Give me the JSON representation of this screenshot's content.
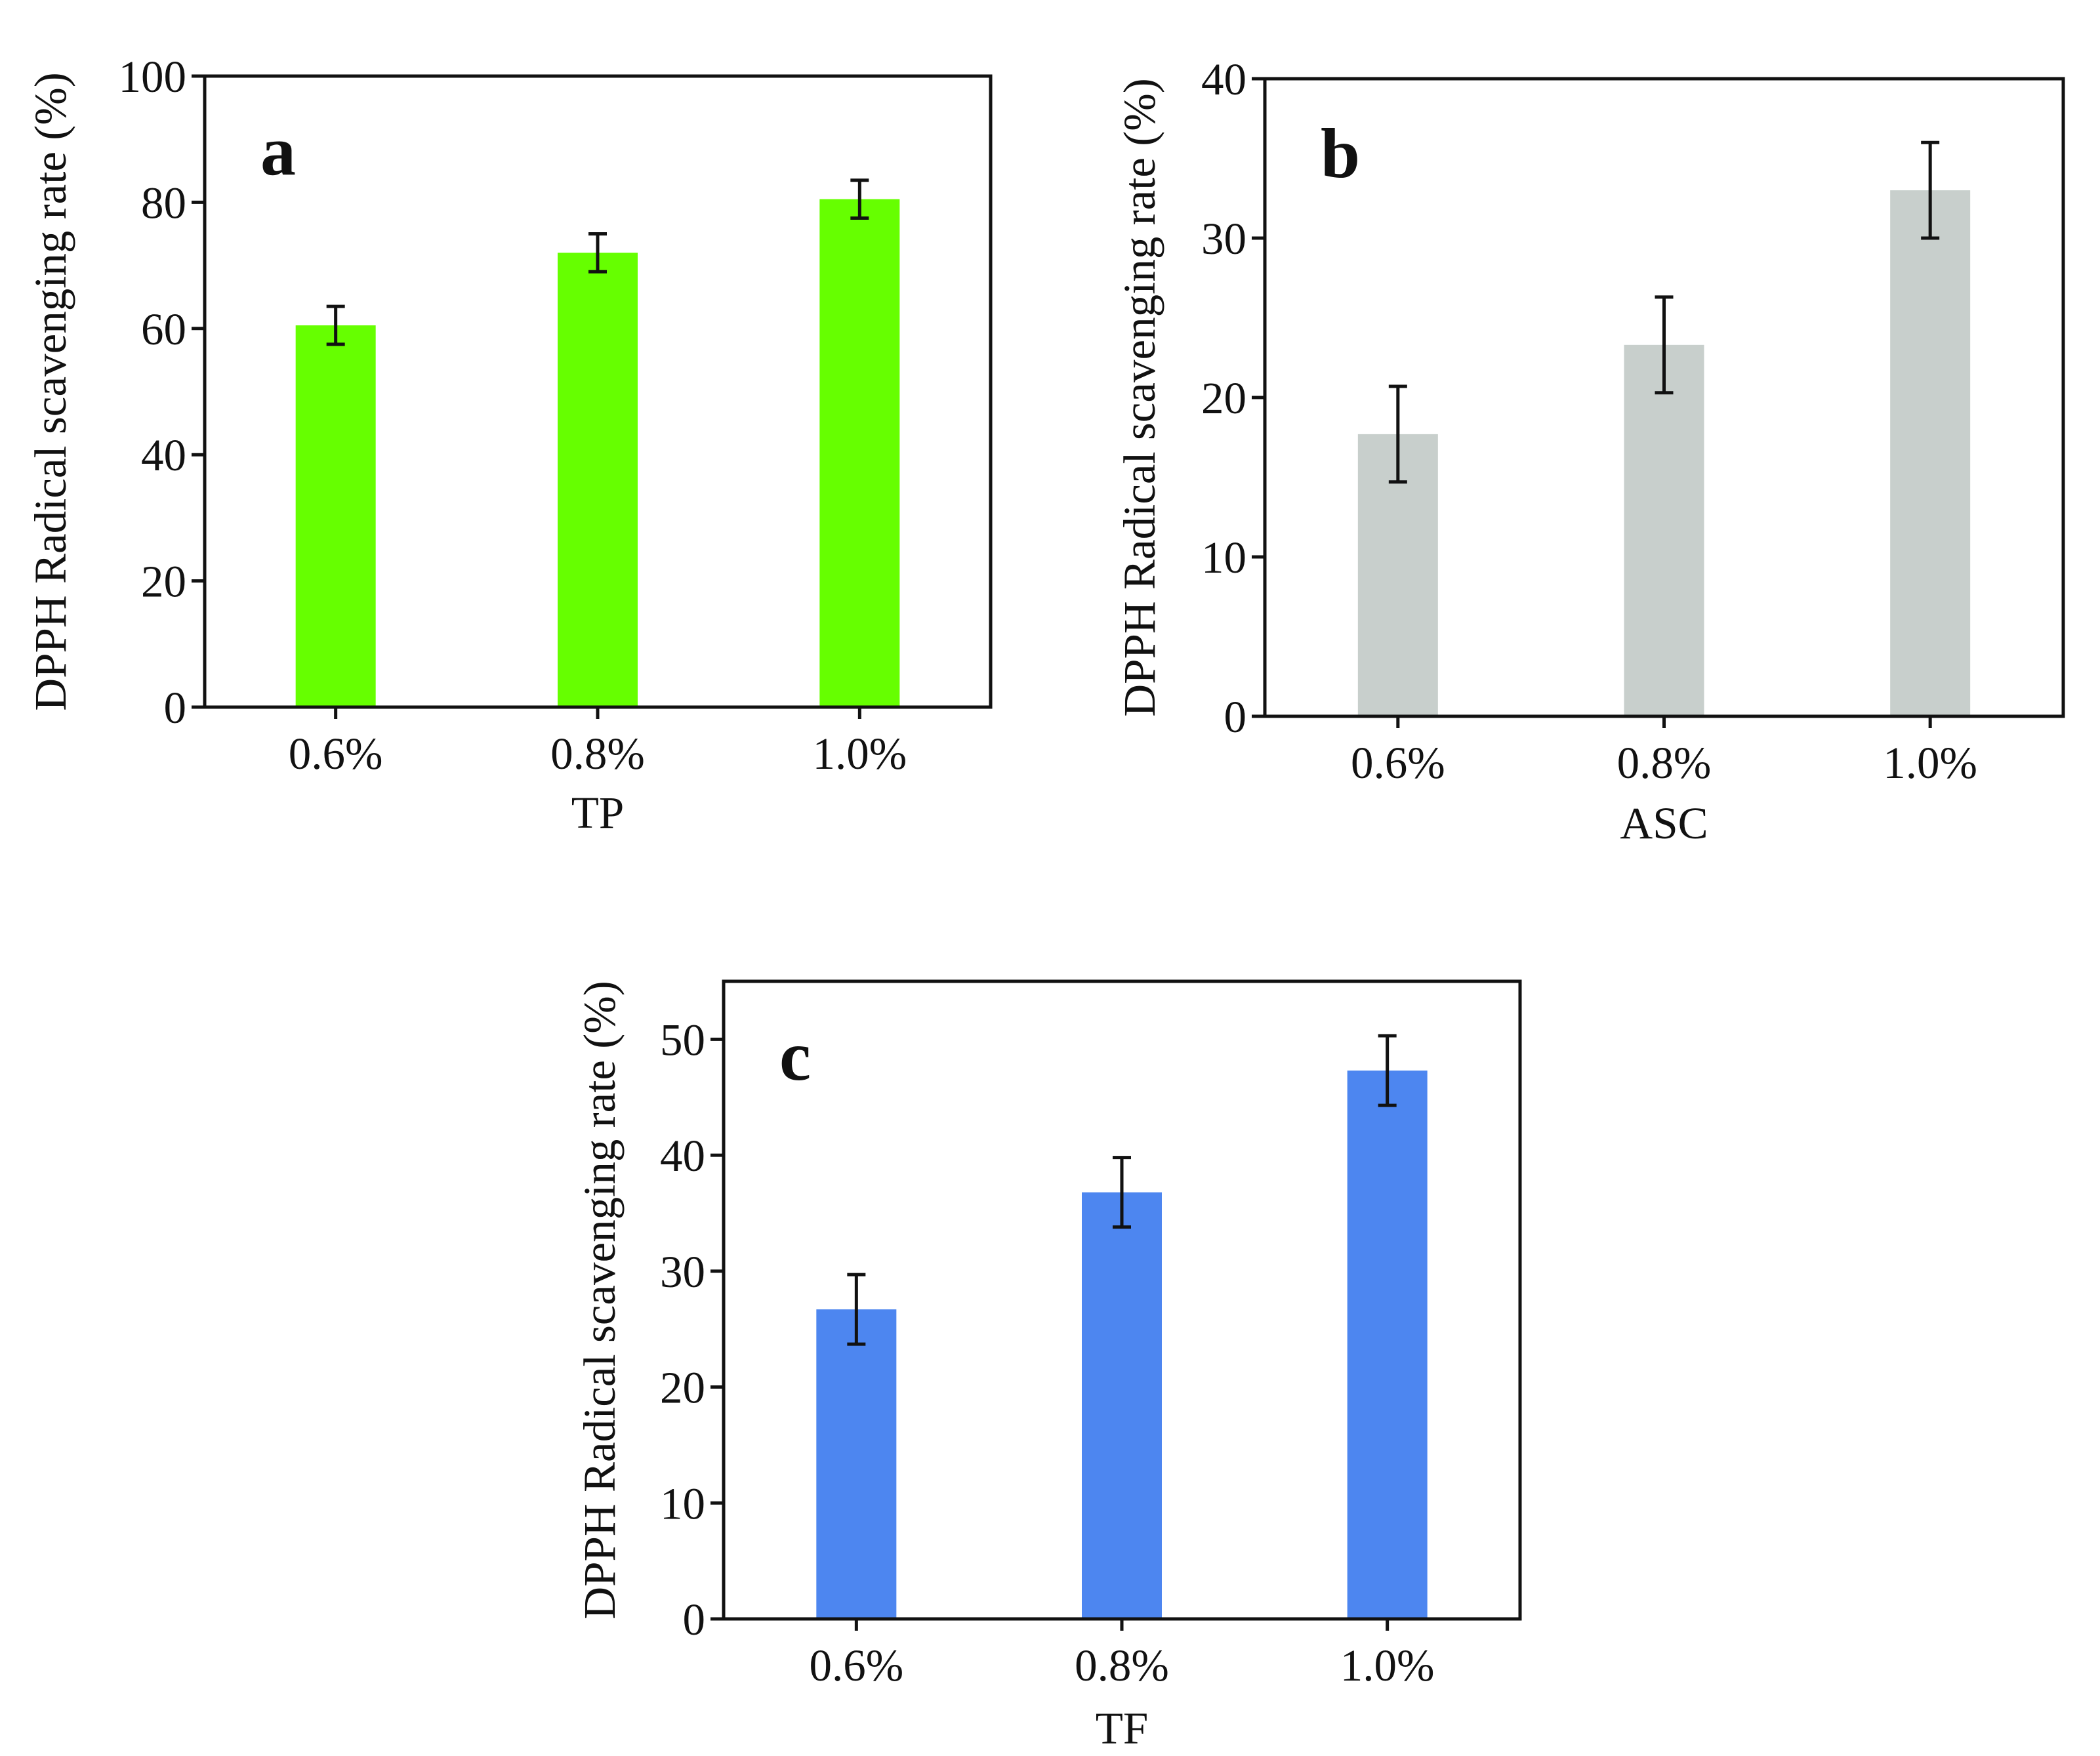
{
  "chart_data": [
    {
      "type": "bar",
      "panel_label": "a",
      "categories": [
        "0.6%",
        "0.8%",
        "1.0%"
      ],
      "values": [
        60.5,
        72.0,
        80.5
      ],
      "errors": [
        3.0,
        3.0,
        3.0
      ],
      "xlabel": "TP",
      "ylabel": "DPPH Radical scavenging rate (%)",
      "ylim": [
        0,
        100
      ],
      "yticks": [
        0,
        20,
        40,
        60,
        80,
        100
      ],
      "bar_color": "#66ff00"
    },
    {
      "type": "bar",
      "panel_label": "b",
      "categories": [
        "0.6%",
        "0.8%",
        "1.0%"
      ],
      "values": [
        17.7,
        23.3,
        33.0
      ],
      "errors": [
        3.0,
        3.0,
        3.0
      ],
      "xlabel": "ASC",
      "ylabel": "DPPH Radical scavenging rate (%)",
      "ylim": [
        0,
        40
      ],
      "yticks": [
        0,
        10,
        20,
        30,
        40
      ],
      "bar_color": "#c8cfcc"
    },
    {
      "type": "bar",
      "panel_label": "c",
      "categories": [
        "0.6%",
        "0.8%",
        "1.0%"
      ],
      "values": [
        26.7,
        36.8,
        47.3
      ],
      "errors": [
        3.0,
        3.0,
        3.0
      ],
      "xlabel": "TF",
      "ylabel": "DPPH Radical scavenging rate (%)",
      "ylim": [
        0,
        55
      ],
      "yticks": [
        0,
        10,
        20,
        30,
        40,
        50
      ],
      "bar_color": "#4d86f0"
    }
  ]
}
